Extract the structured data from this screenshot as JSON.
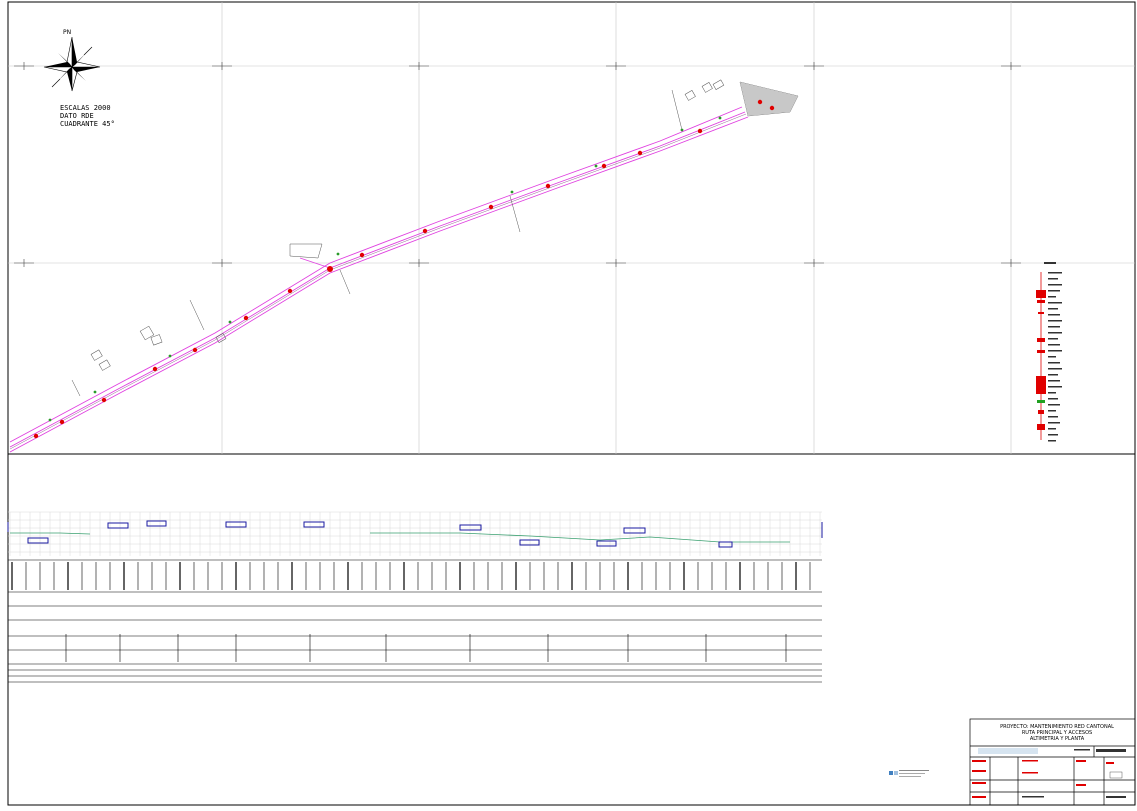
{
  "plan": {
    "north_label": "PN",
    "notes": [
      "ESCALAS 2000",
      "DATO RDE",
      "CUADRANTE 45°"
    ]
  },
  "title_block": {
    "lines": [
      "PROYECTO: MANTENIMIENTO RED CANTONAL",
      "RUTA PRINCIPAL Y ACCESOS",
      "ALTIMETRIA Y PLANTA"
    ]
  },
  "colors": {
    "road": "#e040e0",
    "frame": "#000000",
    "grid": "#c8c8c8",
    "marker": "#e00000",
    "profile_box": "#1a1aa0",
    "terrain": "#3aa070",
    "legend_red": "#e00000",
    "legend_green": "#20a020",
    "logo_blue": "#4080c0"
  }
}
